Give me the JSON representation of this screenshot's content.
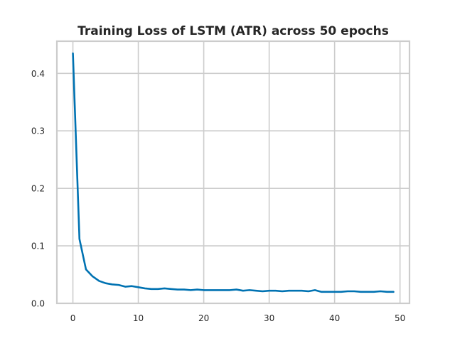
{
  "chart_data": {
    "type": "line",
    "title": "Training Loss of LSTM (ATR) across 50 epochs",
    "xlabel": "",
    "ylabel": "",
    "xlim": [
      -2.45,
      51.45
    ],
    "ylim": [
      0.0,
      0.456
    ],
    "xticks": [
      0,
      10,
      20,
      30,
      40,
      50
    ],
    "yticks": [
      0.0,
      0.1,
      0.2,
      0.3,
      0.4
    ],
    "xtick_labels": [
      "0",
      "10",
      "20",
      "30",
      "40",
      "50"
    ],
    "ytick_labels": [
      "0.0",
      "0.1",
      "0.2",
      "0.3",
      "0.4"
    ],
    "grid": true,
    "legend": "none",
    "series": [
      {
        "color": "#0072b2",
        "x": [
          0,
          1,
          2,
          3,
          4,
          5,
          6,
          7,
          8,
          9,
          10,
          11,
          12,
          13,
          14,
          15,
          16,
          17,
          18,
          19,
          20,
          21,
          22,
          23,
          24,
          25,
          26,
          27,
          28,
          29,
          30,
          31,
          32,
          33,
          34,
          35,
          36,
          37,
          38,
          39,
          40,
          41,
          42,
          43,
          44,
          45,
          46,
          47,
          48,
          49
        ],
        "values": [
          0.435,
          0.112,
          0.059,
          0.047,
          0.039,
          0.035,
          0.033,
          0.032,
          0.029,
          0.03,
          0.028,
          0.026,
          0.025,
          0.025,
          0.026,
          0.025,
          0.024,
          0.024,
          0.023,
          0.024,
          0.023,
          0.023,
          0.023,
          0.023,
          0.023,
          0.024,
          0.022,
          0.023,
          0.022,
          0.021,
          0.022,
          0.022,
          0.021,
          0.022,
          0.022,
          0.022,
          0.021,
          0.023,
          0.02,
          0.02,
          0.02,
          0.02,
          0.021,
          0.021,
          0.02,
          0.02,
          0.02,
          0.021,
          0.02,
          0.02
        ]
      }
    ]
  }
}
